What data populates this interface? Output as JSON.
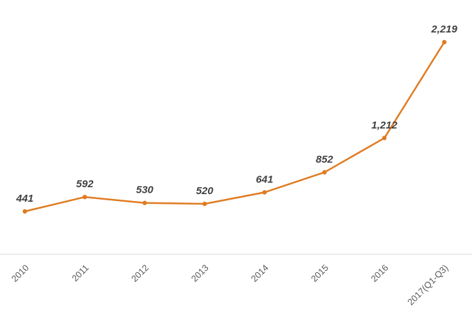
{
  "chart_data": {
    "type": "line",
    "categories": [
      "2010",
      "2011",
      "2012",
      "2013",
      "2014",
      "2015",
      "2016",
      "2017(Q1-Q3)"
    ],
    "series": [
      {
        "values": [
          441,
          592,
          530,
          520,
          641,
          852,
          1212,
          2219
        ],
        "labels": [
          "441",
          "592",
          "530",
          "520",
          "641",
          "852",
          "1,212",
          "2,219"
        ],
        "color": "#E07B22"
      }
    ],
    "ylim": [
      0,
      2400
    ],
    "grid": false,
    "legend": "none",
    "axis_color": "#D9D9D9"
  }
}
